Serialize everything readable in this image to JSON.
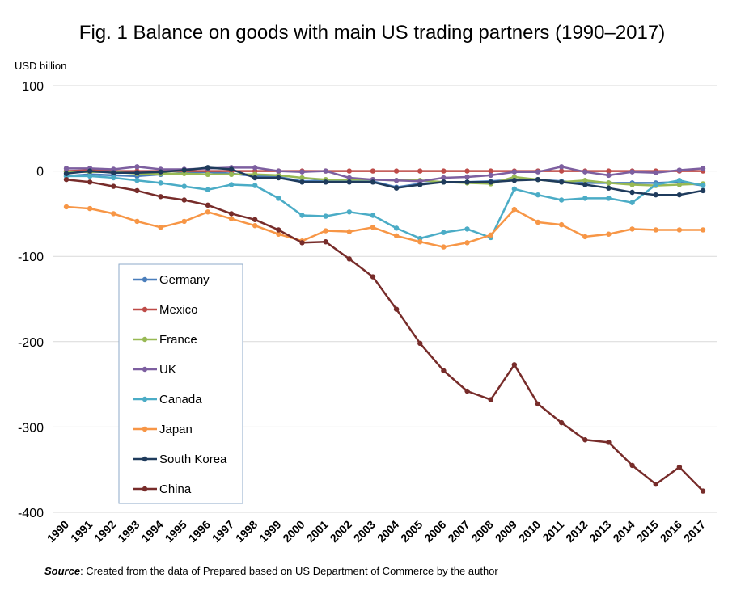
{
  "chart_data": {
    "type": "line",
    "title": "Fig. 1 Balance on goods with main US trading partners (1990–2017)",
    "ylabel": "USD billion",
    "xlabel": "",
    "ylim": [
      -400,
      100
    ],
    "yticks": [
      100,
      0,
      -100,
      -200,
      -300,
      -400
    ],
    "grid": true,
    "legend_position": "left-middle",
    "x": [
      "1990",
      "1991",
      "1992",
      "1993",
      "1994",
      "1995",
      "1996",
      "1997",
      "1998",
      "1999",
      "2000",
      "2001",
      "2002",
      "2003",
      "2004",
      "2005",
      "2006",
      "2007",
      "2008",
      "2009",
      "2010",
      "2011",
      "2012",
      "2013",
      "2014",
      "2015",
      "2016",
      "2017"
    ],
    "series": [
      {
        "name": "Germany",
        "color": "#4a7ebb",
        "values": [
          -6,
          -4,
          -5,
          -6,
          -4,
          -2,
          -1,
          -3,
          -6,
          -7,
          -12,
          -11,
          -11,
          -12,
          -19,
          -15,
          -13,
          -13,
          -12,
          -10,
          -10,
          -12,
          -14,
          -14,
          -14,
          -14,
          -13,
          -17
        ]
      },
      {
        "name": "Mexico",
        "color": "#be4b48",
        "values": [
          0,
          1,
          0,
          0,
          0,
          0,
          0,
          0,
          0,
          0,
          0,
          0,
          0,
          0,
          0,
          0,
          0,
          0,
          0,
          0,
          0,
          0,
          0,
          0,
          0,
          0,
          0,
          0
        ]
      },
      {
        "name": "France",
        "color": "#98b954",
        "values": [
          -1,
          -1,
          -1,
          -3,
          -3,
          -3,
          -4,
          -4,
          -4,
          -5,
          -8,
          -10,
          -10,
          -10,
          -11,
          -11,
          -13,
          -14,
          -15,
          -7,
          -10,
          -13,
          -11,
          -14,
          -16,
          -17,
          -16,
          -15
        ]
      },
      {
        "name": "UK",
        "color": "#7d5fa0",
        "values": [
          3,
          3,
          2,
          5,
          2,
          2,
          3,
          4,
          4,
          0,
          -1,
          0,
          -8,
          -10,
          -11,
          -12,
          -8,
          -7,
          -5,
          -1,
          -1,
          5,
          -1,
          -5,
          -1,
          -2,
          1,
          3
        ]
      },
      {
        "name": "Canada",
        "color": "#4bacc6",
        "values": [
          -6,
          -6,
          -8,
          -11,
          -14,
          -18,
          -22,
          -16,
          -17,
          -32,
          -52,
          -53,
          -48,
          -52,
          -67,
          -79,
          -72,
          -68,
          -78,
          -21,
          -28,
          -34,
          -32,
          -32,
          -37,
          -16,
          -11,
          -17
        ]
      },
      {
        "name": "Japan",
        "color": "#f79646",
        "values": [
          -42,
          -44,
          -50,
          -59,
          -66,
          -59,
          -48,
          -56,
          -64,
          -74,
          -82,
          -70,
          -71,
          -66,
          -76,
          -83,
          -89,
          -84,
          -75,
          -45,
          -60,
          -63,
          -77,
          -74,
          -68,
          -69,
          -69,
          -69
        ]
      },
      {
        "name": "South Korea",
        "color": "#1f3b5c",
        "values": [
          -3,
          0,
          -2,
          -2,
          -1,
          1,
          4,
          2,
          -8,
          -8,
          -13,
          -13,
          -13,
          -13,
          -20,
          -16,
          -13,
          -13,
          -13,
          -11,
          -10,
          -13,
          -16,
          -20,
          -25,
          -28,
          -28,
          -23
        ]
      },
      {
        "name": "China",
        "color": "#772c2a",
        "values": [
          -10,
          -13,
          -18,
          -23,
          -30,
          -34,
          -40,
          -50,
          -57,
          -69,
          -84,
          -83,
          -103,
          -124,
          -162,
          -202,
          -234,
          -258,
          -268,
          -227,
          -273,
          -295,
          -315,
          -318,
          -345,
          -367,
          -347,
          -375
        ]
      }
    ]
  },
  "source": {
    "label": "Source",
    "text": ": Created from the data of Prepared based on US Department of Commerce  by the author"
  }
}
